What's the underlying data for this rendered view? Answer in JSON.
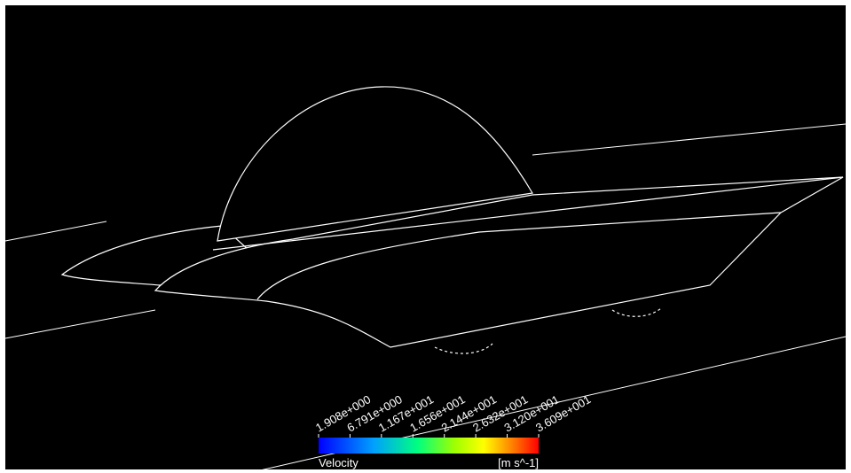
{
  "legend": {
    "title": "Velocity",
    "unit": "[m s^-1]",
    "range": [
      1.908,
      36.09
    ],
    "ticks": [
      {
        "value": 1.908,
        "label": "1.908e+000"
      },
      {
        "value": 6.791,
        "label": "6.791e+000"
      },
      {
        "value": 11.67,
        "label": "1.167e+001"
      },
      {
        "value": 16.56,
        "label": "1.656e+001"
      },
      {
        "value": 21.44,
        "label": "2.144e+001"
      },
      {
        "value": 26.32,
        "label": "2.632e+001"
      },
      {
        "value": 31.2,
        "label": "3.120e+001"
      },
      {
        "value": 36.09,
        "label": "3.609e+001"
      }
    ]
  }
}
